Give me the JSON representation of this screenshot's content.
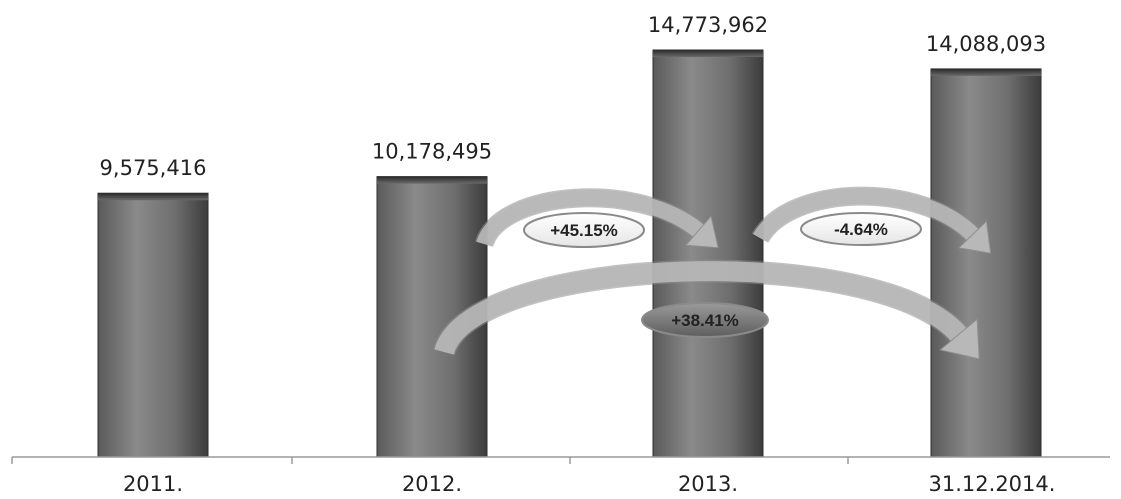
{
  "chart_data": {
    "type": "bar",
    "categories": [
      "2011.",
      "2012.",
      "2013.",
      "31.12.2014."
    ],
    "values": [
      9575416,
      10178495,
      14773962,
      14088093
    ],
    "value_labels": [
      "9,575,416",
      "10,178,495",
      "14,773,962",
      "14,088,093"
    ],
    "ylim": [
      0,
      15500000
    ],
    "grid": false,
    "legend": "none",
    "colors": {
      "bar_dark": "#3a3a3a",
      "bar_mid": "#777777",
      "bar_light": "#9b9b9b",
      "arrow": "#b8b8b8",
      "axis": "#9a9a9a"
    },
    "annotations": [
      {
        "text": "+45.15%",
        "from": 1,
        "to": 2
      },
      {
        "text": "-4.64%",
        "from": 2,
        "to": 3
      },
      {
        "text": "+38.41%",
        "from": 1,
        "to": 3
      }
    ]
  }
}
